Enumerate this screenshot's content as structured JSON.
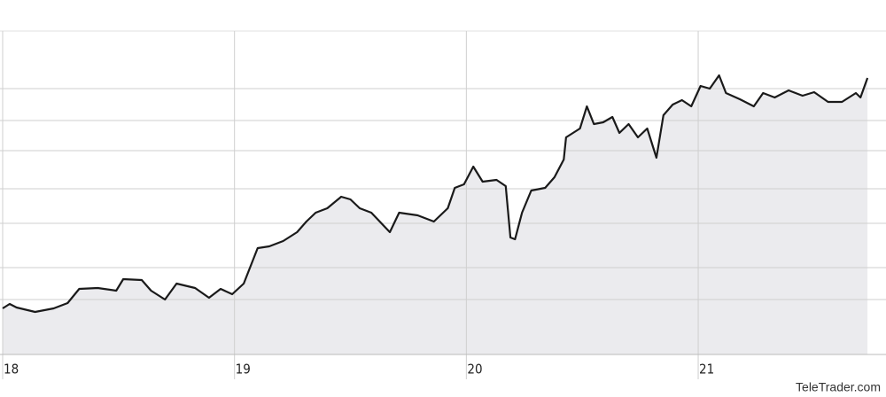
{
  "chart_data": {
    "type": "line",
    "x": [
      18,
      18.03,
      18.06,
      18.14,
      18.22,
      18.28,
      18.33,
      18.41,
      18.49,
      18.52,
      18.6,
      18.64,
      18.7,
      18.75,
      18.83,
      18.89,
      18.94,
      18.99,
      19.04,
      19.1,
      19.15,
      19.21,
      19.27,
      19.31,
      19.35,
      19.4,
      19.46,
      19.5,
      19.54,
      19.59,
      19.67,
      19.71,
      19.79,
      19.86,
      19.92,
      19.95,
      19.99,
      20.03,
      20.07,
      20.13,
      20.17,
      20.19,
      20.21,
      20.24,
      20.28,
      20.34,
      20.38,
      20.42,
      20.43,
      20.49,
      20.52,
      20.55,
      20.59,
      20.63,
      20.66,
      20.7,
      20.74,
      20.78,
      20.82,
      20.85,
      20.89,
      20.93,
      20.97,
      21.01,
      21.05,
      21.09,
      21.12,
      21.18,
      21.24,
      21.28,
      21.33,
      21.39,
      21.45,
      21.5,
      21.56,
      21.62,
      21.68,
      21.7,
      21.73
    ],
    "series": [
      {
        "color": "#1a1a1a",
        "fill": "#ebebee",
        "values": [
          52,
          57,
          53,
          48,
          52,
          58,
          74,
          75,
          72,
          85,
          84,
          72,
          62,
          80,
          75,
          64,
          74,
          68,
          80,
          120,
          122,
          128,
          138,
          150,
          160,
          165,
          178,
          175,
          165,
          160,
          138,
          160,
          157,
          150,
          165,
          188,
          192,
          212,
          195,
          197,
          190,
          132,
          130,
          160,
          185,
          188,
          200,
          220,
          245,
          255,
          280,
          260,
          262,
          268,
          250,
          260,
          245,
          255,
          222,
          270,
          282,
          287,
          280,
          303,
          300,
          315,
          295,
          288,
          280,
          295,
          290,
          298,
          292,
          296,
          285,
          285,
          295,
          290,
          312
        ]
      }
    ],
    "xlim": [
      18,
      21.81
    ],
    "xticks": [
      18,
      19,
      20,
      21
    ],
    "ylim": [
      0,
      365
    ],
    "ygrid": [
      62,
      98,
      148,
      187,
      230,
      264,
      300
    ],
    "watermark": "TeleTrader.com"
  }
}
